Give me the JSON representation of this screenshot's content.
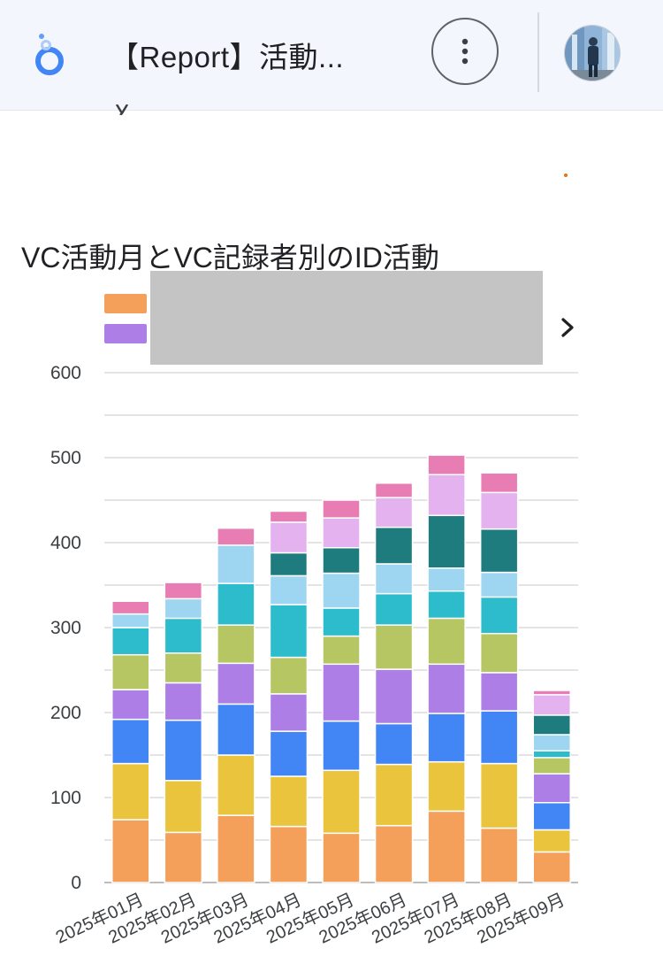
{
  "app_bar": {
    "title": "【Report】活動...",
    "logo_icon": "looker-studio-logo",
    "more_icon": "more-vert-icon",
    "avatar_icon": "user-avatar"
  },
  "chart_section": {
    "title": "VC活動月とVC記録者別のID活動",
    "legend": {
      "visible_swatch_colors": [
        "#f5a05a",
        "#ad7fe6"
      ],
      "next_icon": "chevron-right-icon"
    }
  },
  "chart_data": {
    "type": "bar",
    "stacked": true,
    "title": "VC活動月とVC記録者別のID活動",
    "xlabel": "",
    "ylabel": "",
    "ylim": [
      0,
      600
    ],
    "yticks": [
      0,
      100,
      200,
      300,
      400,
      500,
      600
    ],
    "grid": true,
    "legend_position": "top",
    "categories": [
      "2025年01月",
      "2025年02月",
      "2025年03月",
      "2025年04月",
      "2025年05月",
      "2025年06月",
      "2025年07月",
      "2025年08月",
      "2025年09月"
    ],
    "series": [
      {
        "color": "#f5a05a",
        "values": [
          74,
          59,
          79,
          66,
          58,
          67,
          84,
          64,
          36
        ]
      },
      {
        "color": "#eac43c",
        "values": [
          66,
          61,
          71,
          59,
          74,
          72,
          58,
          76,
          26
        ]
      },
      {
        "color": "#4285f4",
        "values": [
          52,
          71,
          60,
          53,
          58,
          48,
          57,
          62,
          32
        ]
      },
      {
        "color": "#ad7fe6",
        "values": [
          35,
          44,
          48,
          44,
          67,
          64,
          58,
          45,
          34
        ]
      },
      {
        "color": "#b5c663",
        "values": [
          41,
          35,
          45,
          43,
          33,
          52,
          54,
          46,
          19
        ]
      },
      {
        "color": "#2cbccc",
        "values": [
          32,
          41,
          49,
          62,
          33,
          37,
          32,
          43,
          8
        ]
      },
      {
        "color": "#9ed5f1",
        "values": [
          16,
          23,
          45,
          34,
          41,
          35,
          27,
          29,
          19
        ]
      },
      {
        "color": "#1e7b7e",
        "values": [
          0,
          0,
          0,
          27,
          30,
          43,
          62,
          51,
          23
        ]
      },
      {
        "color": "#e3b2ef",
        "values": [
          0,
          0,
          0,
          36,
          35,
          35,
          48,
          43,
          24
        ]
      },
      {
        "color": "#e87db3",
        "values": [
          15,
          19,
          20,
          13,
          21,
          17,
          23,
          23,
          5
        ]
      }
    ]
  }
}
